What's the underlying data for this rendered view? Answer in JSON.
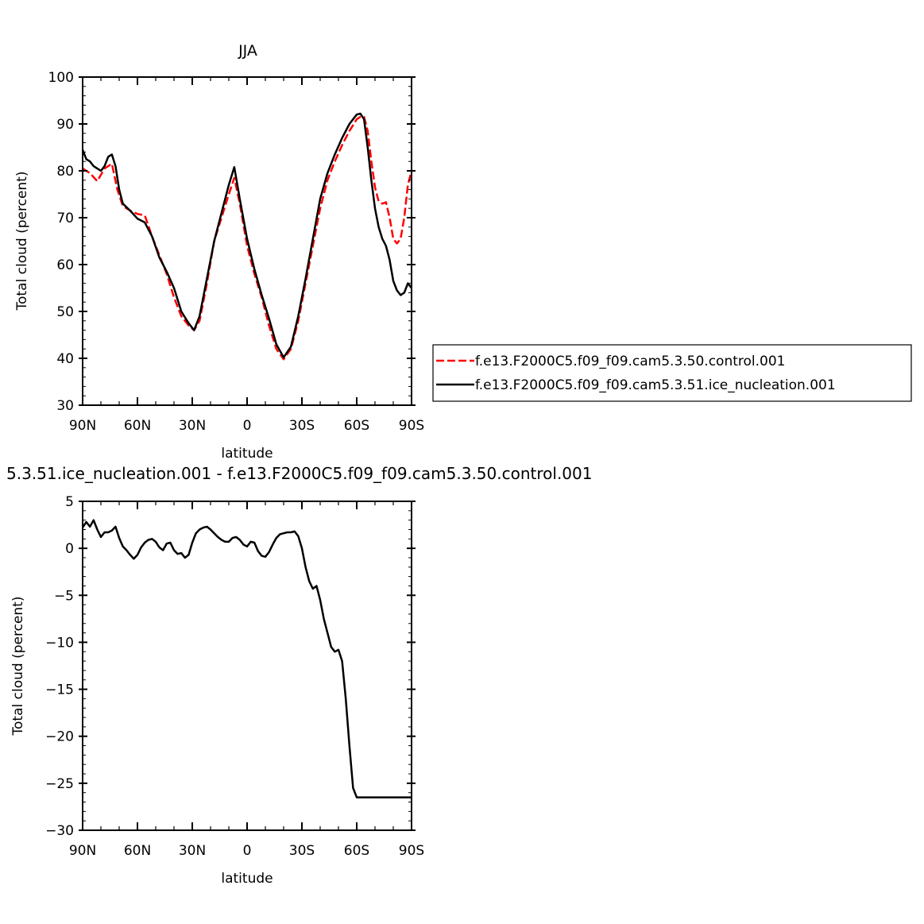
{
  "chart_data": [
    {
      "type": "line",
      "title": "JJA",
      "xlabel": "latitude",
      "ylabel": "Total cloud (percent)",
      "x_ticks": [
        90,
        60,
        30,
        0,
        -30,
        -60,
        -90
      ],
      "x_tick_labels": [
        "90N",
        "60N",
        "30N",
        "0",
        "30S",
        "60S",
        "90S"
      ],
      "xlim": [
        90,
        -90
      ],
      "ylim": [
        30,
        100
      ],
      "y_ticks": [
        30,
        40,
        50,
        60,
        70,
        80,
        90,
        100
      ],
      "y_tick_labels": [
        "30",
        "40",
        "50",
        "60",
        "70",
        "80",
        "90",
        "100"
      ],
      "grid": false,
      "legend_position": "right",
      "series": [
        {
          "name": "f.e13.F2000C5.f09_f09.cam5.3.50.control.001",
          "color": "#ff0000",
          "dash": "dashed",
          "x": [
            90,
            86,
            82,
            78,
            74,
            71,
            68,
            64,
            60,
            56,
            52,
            48,
            44,
            40,
            36,
            32,
            29,
            26,
            22,
            18,
            14,
            10,
            7,
            4,
            0,
            -4,
            -8,
            -12,
            -16,
            -20,
            -24,
            -28,
            -32,
            -36,
            -40,
            -44,
            -48,
            -52,
            -56,
            -60,
            -62,
            -64,
            -66,
            -68,
            -70,
            -72,
            -74,
            -76,
            -78,
            -80,
            -82,
            -84,
            -86,
            -88,
            -90
          ],
          "values": [
            80.5,
            79.5,
            77.8,
            80.5,
            81.5,
            76,
            72.5,
            71.5,
            70.8,
            70.5,
            66,
            62,
            58,
            53,
            49,
            47,
            46,
            48,
            56,
            65,
            70,
            75,
            78.5,
            73,
            64,
            58,
            53,
            47,
            42,
            39.8,
            42,
            48,
            56,
            64,
            72,
            78,
            82,
            85.5,
            88.5,
            91,
            91.5,
            91.5,
            88.5,
            82,
            76.5,
            73.5,
            73,
            73.3,
            70,
            65.5,
            64.5,
            65.5,
            70,
            77,
            80
          ]
        },
        {
          "name": "f.e13.F2000C5.f09_f09.cam5.3.51.ice_nucleation.001",
          "color": "#000000",
          "dash": "solid",
          "x": [
            90,
            88,
            86,
            84,
            82,
            80,
            78,
            76,
            74,
            72,
            70,
            68,
            64,
            60,
            56,
            52,
            48,
            44,
            40,
            36,
            32,
            29,
            26,
            22,
            18,
            14,
            10,
            7,
            4,
            0,
            -4,
            -8,
            -12,
            -16,
            -20,
            -24,
            -28,
            -32,
            -36,
            -40,
            -44,
            -48,
            -52,
            -56,
            -60,
            -62,
            -64,
            -66,
            -68,
            -70,
            -72,
            -74,
            -76,
            -78,
            -80,
            -82,
            -84,
            -86,
            -88,
            -90
          ],
          "values": [
            84.5,
            82.5,
            82,
            81,
            80.5,
            80,
            81,
            83,
            83.5,
            81,
            76,
            73,
            71.5,
            69.8,
            69,
            66,
            61.5,
            58.5,
            55,
            50,
            47.5,
            46,
            49,
            57,
            65,
            71,
            77,
            80.8,
            74,
            65.5,
            59,
            53.5,
            48.5,
            43,
            40.2,
            42.5,
            49,
            57,
            65.5,
            74,
            79.5,
            83.5,
            87,
            90,
            92,
            92.2,
            91,
            85,
            78,
            72,
            68,
            65.5,
            64,
            61,
            56.5,
            54.5,
            53.5,
            54,
            56,
            55
          ]
        }
      ]
    },
    {
      "type": "line",
      "title": "5.3.51.ice_nucleation.001 - f.e13.F2000C5.f09_f09.cam5.3.50.control.001",
      "xlabel": "latitude",
      "ylabel": "Total cloud (percent)",
      "x_ticks": [
        90,
        60,
        30,
        0,
        -30,
        -60,
        -90
      ],
      "x_tick_labels": [
        "90N",
        "60N",
        "30N",
        "0",
        "30S",
        "60S",
        "90S"
      ],
      "xlim": [
        90,
        -90
      ],
      "ylim": [
        -30,
        5
      ],
      "y_ticks": [
        5,
        0,
        -5,
        -10,
        -15,
        -20,
        -25,
        -30
      ],
      "y_tick_labels": [
        "5",
        "0",
        "−5",
        "−10",
        "−15",
        "−20",
        "−25",
        "−30"
      ],
      "grid": false,
      "series": [
        {
          "color": "#000000",
          "dash": "solid",
          "x": [
            90,
            88,
            86,
            84,
            82,
            80,
            78,
            76,
            74,
            72,
            70,
            68,
            66,
            64,
            62,
            60,
            58,
            56,
            54,
            52,
            50,
            48,
            46,
            44,
            42,
            40,
            38,
            36,
            34,
            32,
            30,
            28,
            26,
            24,
            22,
            20,
            18,
            16,
            14,
            12,
            10,
            8,
            6,
            4,
            2,
            0,
            -2,
            -4,
            -6,
            -8,
            -10,
            -12,
            -14,
            -16,
            -18,
            -20,
            -22,
            -24,
            -26,
            -28,
            -30,
            -32,
            -34,
            -36,
            -38,
            -40,
            -42,
            -44,
            -46,
            -48,
            -50,
            -52,
            -54,
            -56,
            -58,
            -60,
            -62,
            -64,
            -66,
            -68,
            -70,
            -72,
            -74,
            -76,
            -78,
            -80,
            -82,
            -84,
            -86,
            -88,
            -90
          ],
          "values": [
            2.2,
            2.8,
            2.3,
            3.0,
            2.0,
            1.2,
            1.7,
            1.7,
            1.9,
            2.3,
            1.1,
            0.2,
            -0.2,
            -0.7,
            -1.1,
            -0.7,
            0.1,
            0.6,
            0.9,
            1.0,
            0.7,
            0.1,
            -0.2,
            0.5,
            0.6,
            -0.2,
            -0.6,
            -0.5,
            -1.0,
            -0.7,
            0.6,
            1.6,
            2.0,
            2.2,
            2.3,
            2.0,
            1.6,
            1.2,
            0.9,
            0.7,
            0.7,
            1.1,
            1.2,
            0.9,
            0.4,
            0.2,
            0.7,
            0.6,
            -0.3,
            -0.8,
            -0.9,
            -0.4,
            0.4,
            1.1,
            1.5,
            1.6,
            1.7,
            1.7,
            1.8,
            1.3,
            0.0,
            -2.0,
            -3.5,
            -4.3,
            -4.0,
            -5.5,
            -7.5,
            -9.0,
            -10.5,
            -11.0,
            -10.8,
            -12.0,
            -16.0,
            -21.0,
            -25.5,
            -26.5,
            -26.5,
            -26.5,
            -26.5,
            -26.5,
            -26.5,
            -26.5,
            -26.5,
            -26.5,
            -26.5,
            -26.5,
            -26.5,
            -26.5,
            -26.5,
            -26.5,
            -26.5
          ]
        }
      ]
    }
  ]
}
